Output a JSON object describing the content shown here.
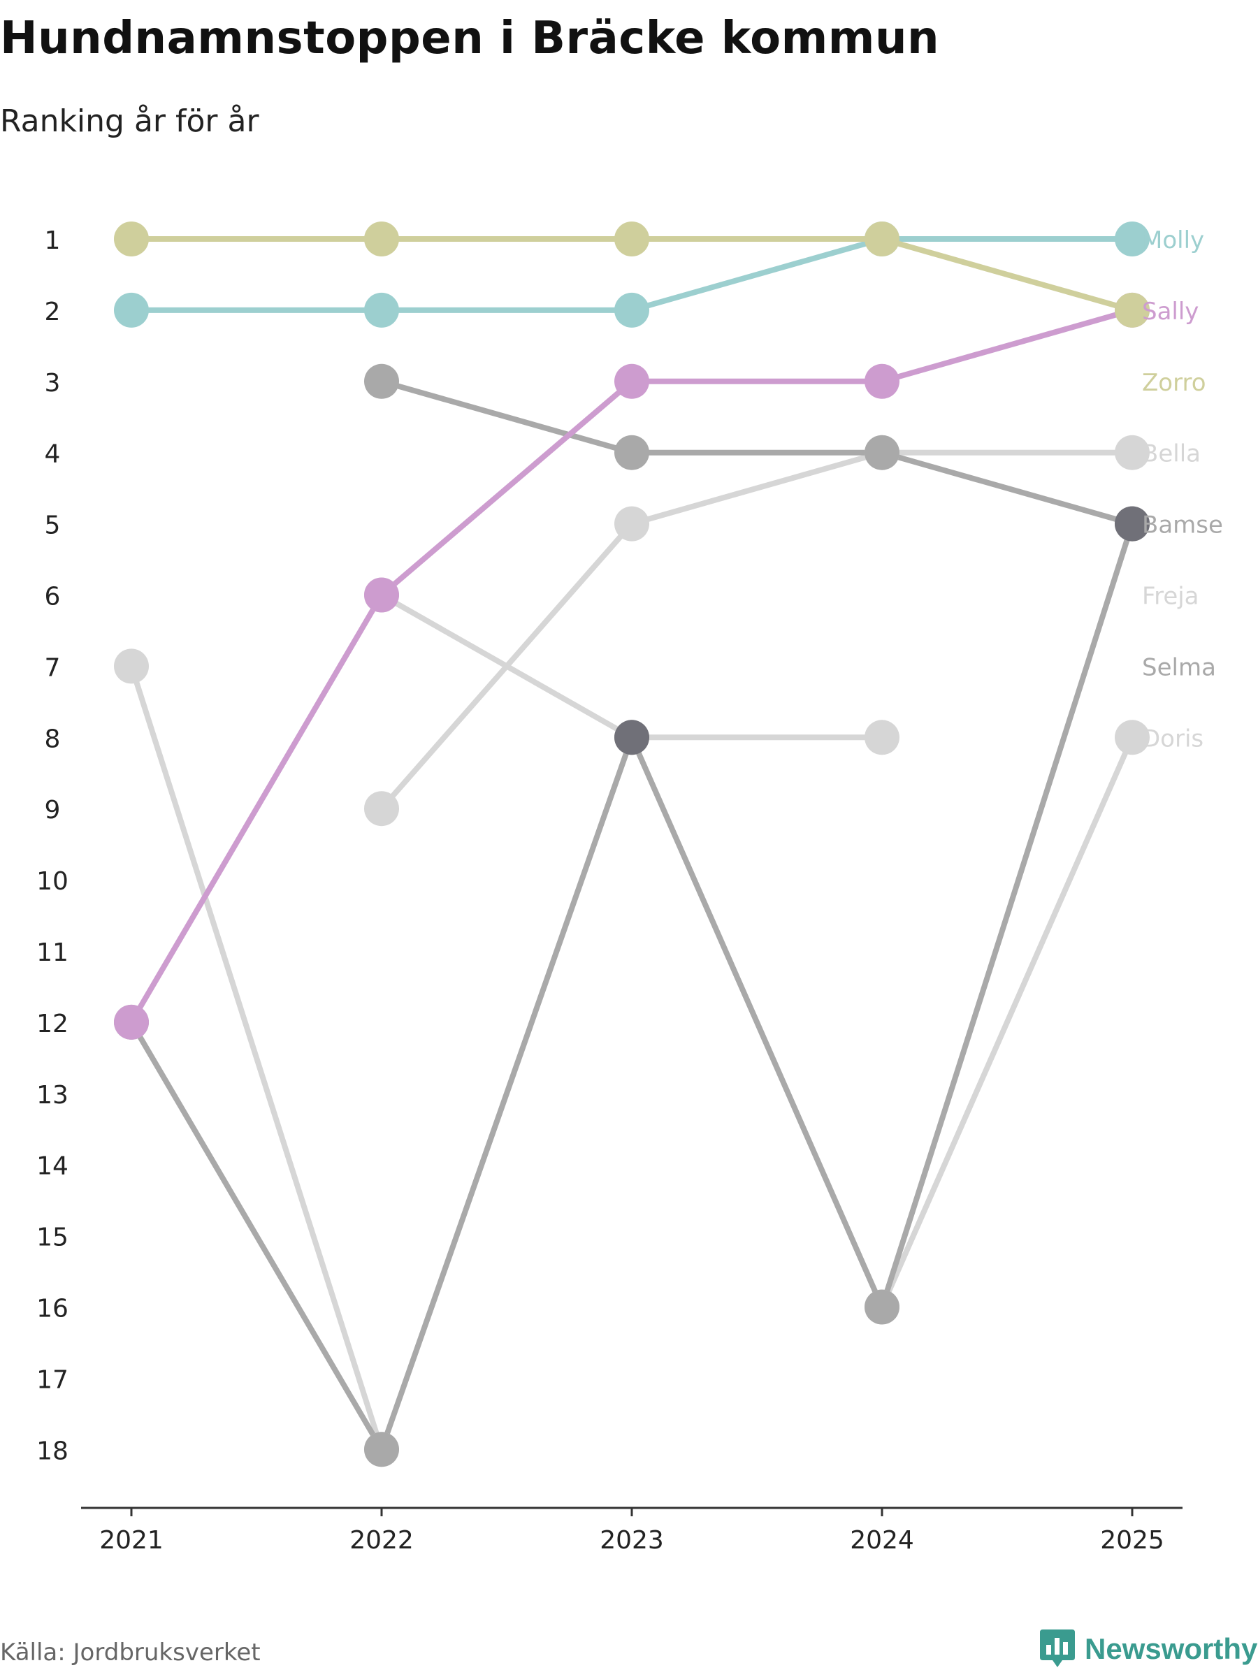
{
  "title": "Hundnamnstoppen i Bräcke kommun",
  "subtitle": "Ranking år för år",
  "source": "Källa: Jordbruksverket",
  "brand": {
    "name": "Newsworthy",
    "icon": "newsworthy-logo-icon",
    "color": "#3a9b8f"
  },
  "chart_data": {
    "type": "line",
    "x": [
      "2021",
      "2022",
      "2023",
      "2024",
      "2025"
    ],
    "y_ticks": [
      "1",
      "2",
      "3",
      "4",
      "5",
      "6",
      "7",
      "8",
      "9",
      "10",
      "11",
      "12",
      "13",
      "14",
      "15",
      "16",
      "17",
      "18"
    ],
    "ylim": [
      1,
      18
    ],
    "y_inverted": true,
    "grid": false,
    "series": [
      {
        "name": "Freja",
        "color": "#d6d6d6",
        "values": [
          7,
          18,
          null,
          null,
          null
        ]
      },
      {
        "name": "Doris",
        "color": "#d6d6d6",
        "values": [
          null,
          6,
          8,
          8,
          null
        ]
      },
      {
        "name": "Bella",
        "color": "#d6d6d6",
        "values": [
          null,
          9,
          5,
          4,
          4
        ]
      },
      {
        "name": "Doris",
        "color": "#d6d6d6",
        "values": [
          null,
          null,
          null,
          16,
          8
        ]
      },
      {
        "name": "Selma",
        "color": "#a9a9a9",
        "values": [
          12,
          18,
          8,
          16,
          5
        ]
      },
      {
        "name": "Bamse",
        "color": "#a9a9a9",
        "values": [
          null,
          3,
          4,
          4,
          5
        ]
      },
      {
        "name": "Sally",
        "color": "#cd9ccf",
        "values": [
          12,
          6,
          3,
          3,
          2
        ]
      },
      {
        "name": "Molly",
        "color": "#9ccfcf",
        "values": [
          2,
          2,
          2,
          1,
          1
        ]
      },
      {
        "name": "Zorro",
        "color": "#cfcf9c",
        "values": [
          1,
          1,
          1,
          1,
          2
        ]
      }
    ],
    "highlight_points": [
      {
        "x": "2023",
        "y": 8,
        "color": "#707078"
      },
      {
        "x": "2025",
        "y": 5,
        "color": "#707078"
      }
    ],
    "end_labels": [
      {
        "name": "Molly",
        "rank": 1,
        "color": "#9ccfcf"
      },
      {
        "name": "Sally",
        "rank": 2,
        "color": "#cd9ccf"
      },
      {
        "name": "Zorro",
        "rank": 3,
        "color": "#cfcf9c"
      },
      {
        "name": "Bella",
        "rank": 4,
        "color": "#d6d6d6"
      },
      {
        "name": "Bamse",
        "rank": 5,
        "color": "#a9a9a9"
      },
      {
        "name": "Freja",
        "rank": 6,
        "color": "#d6d6d6"
      },
      {
        "name": "Selma",
        "rank": 7,
        "color": "#a9a9a9"
      },
      {
        "name": "Doris",
        "rank": 8,
        "color": "#d6d6d6"
      }
    ]
  }
}
